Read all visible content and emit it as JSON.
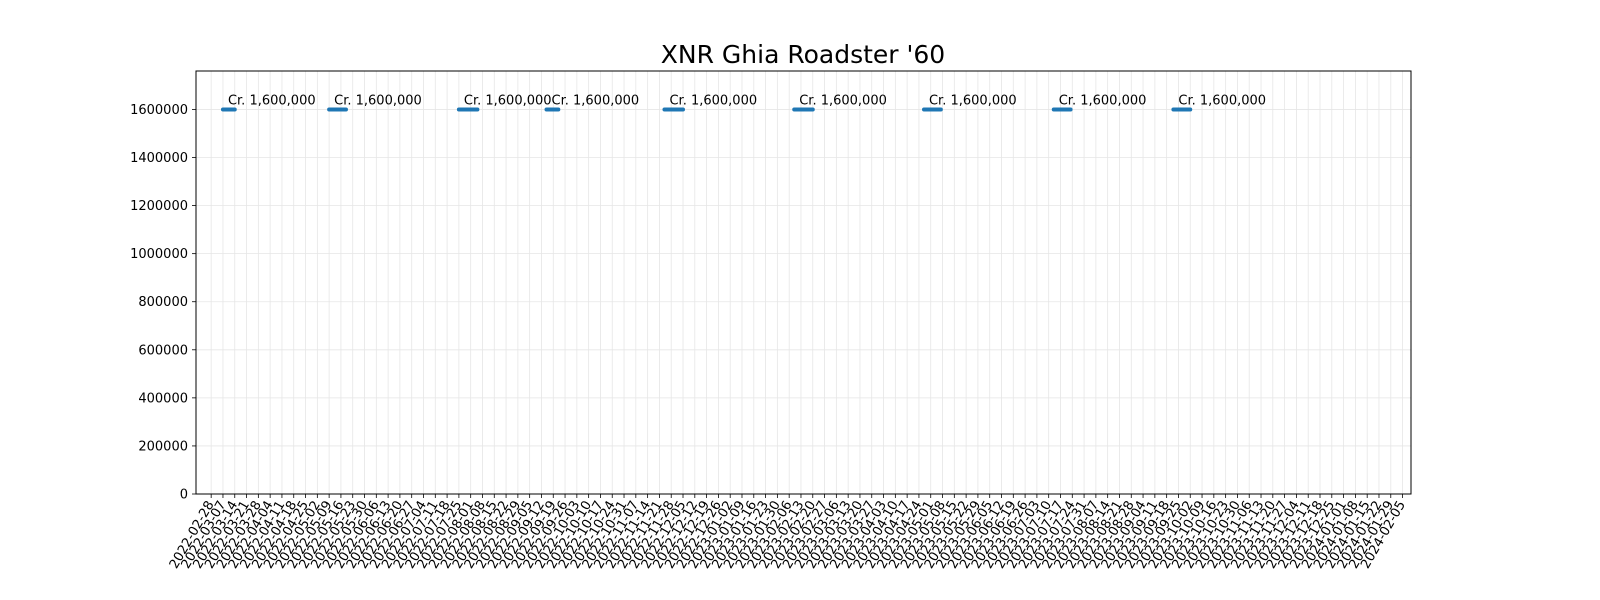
{
  "chart_data": {
    "type": "line",
    "title": "XNR Ghia Roadster '60",
    "xlabel": "",
    "ylabel": "",
    "ylim": [
      0,
      1760000
    ],
    "yticks": [
      0,
      200000,
      400000,
      600000,
      800000,
      1000000,
      1200000,
      1400000,
      1600000
    ],
    "xlim": [
      "2022-02-19",
      "2024-02-10"
    ],
    "grid": true,
    "xtick_rotation": 60,
    "line_color": "#1f77b4",
    "xticks": [
      "2022-02-28",
      "2022-03-07",
      "2022-03-14",
      "2022-03-21",
      "2022-03-28",
      "2022-04-04",
      "2022-04-11",
      "2022-04-18",
      "2022-04-25",
      "2022-05-02",
      "2022-05-09",
      "2022-05-16",
      "2022-05-23",
      "2022-05-30",
      "2022-06-06",
      "2022-06-13",
      "2022-06-20",
      "2022-06-27",
      "2022-07-04",
      "2022-07-11",
      "2022-07-18",
      "2022-07-25",
      "2022-08-01",
      "2022-08-08",
      "2022-08-15",
      "2022-08-22",
      "2022-08-29",
      "2022-09-05",
      "2022-09-12",
      "2022-09-19",
      "2022-09-26",
      "2022-10-03",
      "2022-10-10",
      "2022-10-17",
      "2022-10-24",
      "2022-10-31",
      "2022-11-07",
      "2022-11-14",
      "2022-11-21",
      "2022-11-28",
      "2022-12-05",
      "2022-12-12",
      "2022-12-19",
      "2022-12-26",
      "2023-01-02",
      "2023-01-09",
      "2023-01-16",
      "2023-01-23",
      "2023-01-30",
      "2023-02-06",
      "2023-02-13",
      "2023-02-20",
      "2023-02-27",
      "2023-03-06",
      "2023-03-13",
      "2023-03-20",
      "2023-03-27",
      "2023-04-03",
      "2023-04-10",
      "2023-04-17",
      "2023-04-24",
      "2023-05-01",
      "2023-05-08",
      "2023-05-15",
      "2023-05-22",
      "2023-05-29",
      "2023-06-05",
      "2023-06-12",
      "2023-06-19",
      "2023-06-26",
      "2023-07-03",
      "2023-07-10",
      "2023-07-17",
      "2023-07-24",
      "2023-07-31",
      "2023-08-07",
      "2023-08-14",
      "2023-08-21",
      "2023-08-28",
      "2023-09-04",
      "2023-09-11",
      "2023-09-18",
      "2023-09-25",
      "2023-10-02",
      "2023-10-09",
      "2023-10-16",
      "2023-10-23",
      "2023-10-30",
      "2023-11-06",
      "2023-11-13",
      "2023-11-20",
      "2023-11-27",
      "2023-12-04",
      "2023-12-11",
      "2023-12-18",
      "2023-12-25",
      "2024-01-01",
      "2024-01-08",
      "2024-01-15",
      "2024-01-22",
      "2024-01-29",
      "2024-02-05"
    ],
    "segments": [
      {
        "start": "2022-03-07",
        "end": "2022-03-14",
        "value": 1600000,
        "label": "Cr. 1,600,000"
      },
      {
        "start": "2022-05-09",
        "end": "2022-05-19",
        "value": 1600000,
        "label": "Cr. 1,600,000"
      },
      {
        "start": "2022-07-25",
        "end": "2022-08-05",
        "value": 1600000,
        "label": "Cr. 1,600,000"
      },
      {
        "start": "2022-09-15",
        "end": "2022-09-22",
        "value": 1600000,
        "label": "Cr. 1,600,000"
      },
      {
        "start": "2022-11-24",
        "end": "2022-12-05",
        "value": 1600000,
        "label": "Cr. 1,600,000"
      },
      {
        "start": "2023-02-09",
        "end": "2023-02-20",
        "value": 1600000,
        "label": "Cr. 1,600,000"
      },
      {
        "start": "2023-04-27",
        "end": "2023-05-07",
        "value": 1600000,
        "label": "Cr. 1,600,000"
      },
      {
        "start": "2023-07-13",
        "end": "2023-07-23",
        "value": 1600000,
        "label": "Cr. 1,600,000"
      },
      {
        "start": "2023-09-22",
        "end": "2023-10-02",
        "value": 1600000,
        "label": "Cr. 1,600,000"
      }
    ]
  }
}
